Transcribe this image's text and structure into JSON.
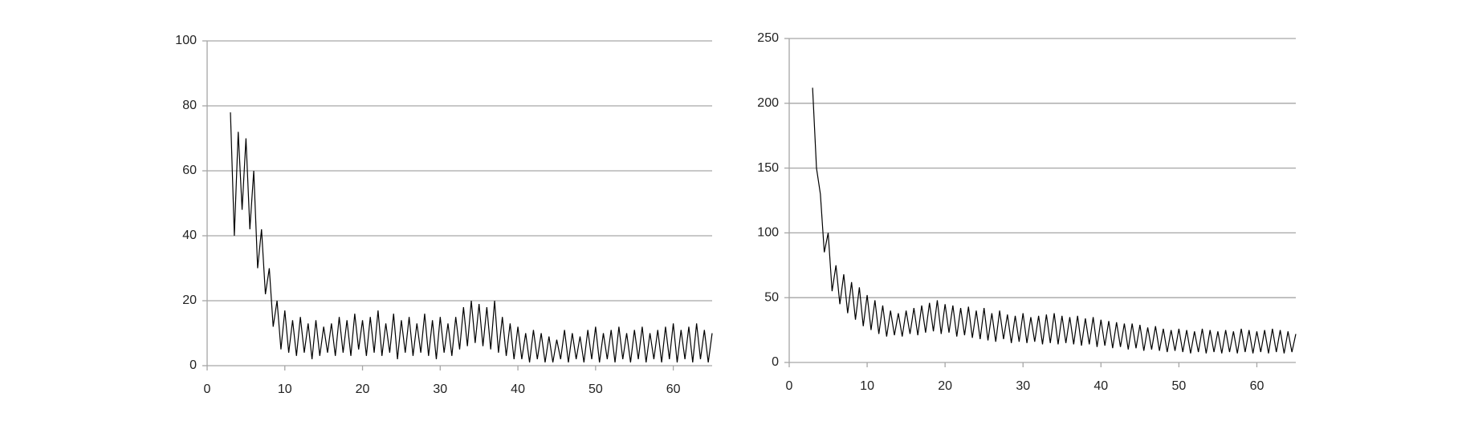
{
  "chart_data": [
    {
      "type": "line",
      "color": "#000000",
      "grid": true,
      "xlim": [
        0,
        65
      ],
      "xticks": [
        0,
        10,
        20,
        30,
        40,
        50,
        60
      ],
      "ylim": [
        0,
        100
      ],
      "yticks": [
        0,
        20,
        40,
        60,
        80,
        100
      ],
      "x": [
        3,
        3.5,
        4,
        4.5,
        5,
        5.5,
        6,
        6.5,
        7,
        7.5,
        8,
        8.5,
        9,
        9.5,
        10,
        10.5,
        11,
        11.5,
        12,
        12.5,
        13,
        13.5,
        14,
        14.5,
        15,
        15.5,
        16,
        16.5,
        17,
        17.5,
        18,
        18.5,
        19,
        19.5,
        20,
        20.5,
        21,
        21.5,
        22,
        22.5,
        23,
        23.5,
        24,
        24.5,
        25,
        25.5,
        26,
        26.5,
        27,
        27.5,
        28,
        28.5,
        29,
        29.5,
        30,
        30.5,
        31,
        31.5,
        32,
        32.5,
        33,
        33.5,
        34,
        34.5,
        35,
        35.5,
        36,
        36.5,
        37,
        37.5,
        38,
        38.5,
        39,
        39.5,
        40,
        40.5,
        41,
        41.5,
        42,
        42.5,
        43,
        43.5,
        44,
        44.5,
        45,
        45.5,
        46,
        46.5,
        47,
        47.5,
        48,
        48.5,
        49,
        49.5,
        50,
        50.5,
        51,
        51.5,
        52,
        52.5,
        53,
        53.5,
        54,
        54.5,
        55,
        55.5,
        56,
        56.5,
        57,
        57.5,
        58,
        58.5,
        59,
        59.5,
        60,
        60.5,
        61,
        61.5,
        62,
        62.5,
        63,
        63.5,
        64,
        64.5,
        65
      ],
      "values": [
        78,
        40,
        72,
        48,
        70,
        42,
        60,
        30,
        42,
        22,
        30,
        12,
        20,
        5,
        17,
        4,
        14,
        3,
        15,
        4,
        13,
        2,
        14,
        3,
        12,
        4,
        13,
        3,
        15,
        4,
        14,
        3,
        16,
        5,
        14,
        3,
        15,
        4,
        17,
        3,
        13,
        4,
        16,
        2,
        14,
        4,
        15,
        3,
        13,
        4,
        16,
        3,
        14,
        2,
        15,
        4,
        13,
        3,
        15,
        5,
        18,
        6,
        20,
        7,
        19,
        6,
        18,
        5,
        20,
        4,
        15,
        3,
        13,
        2,
        12,
        2,
        10,
        1,
        11,
        2,
        10,
        1,
        9,
        1,
        8,
        2,
        11,
        1,
        10,
        2,
        9,
        1,
        11,
        2,
        12,
        1,
        10,
        2,
        11,
        1,
        12,
        2,
        10,
        1,
        11,
        2,
        12,
        1,
        10,
        2,
        11,
        1,
        12,
        2,
        13,
        1,
        11,
        2,
        12,
        1,
        13,
        2,
        11,
        1,
        10
      ]
    },
    {
      "type": "line",
      "color": "#000000",
      "grid": true,
      "xlim": [
        0,
        65
      ],
      "xticks": [
        0,
        10,
        20,
        30,
        40,
        50,
        60
      ],
      "ylim": [
        0,
        250
      ],
      "yticks": [
        0,
        50,
        100,
        150,
        200,
        250
      ],
      "x": [
        3,
        3.5,
        4,
        4.5,
        5,
        5.5,
        6,
        6.5,
        7,
        7.5,
        8,
        8.5,
        9,
        9.5,
        10,
        10.5,
        11,
        11.5,
        12,
        12.5,
        13,
        13.5,
        14,
        14.5,
        15,
        15.5,
        16,
        16.5,
        17,
        17.5,
        18,
        18.5,
        19,
        19.5,
        20,
        20.5,
        21,
        21.5,
        22,
        22.5,
        23,
        23.5,
        24,
        24.5,
        25,
        25.5,
        26,
        26.5,
        27,
        27.5,
        28,
        28.5,
        29,
        29.5,
        30,
        30.5,
        31,
        31.5,
        32,
        32.5,
        33,
        33.5,
        34,
        34.5,
        35,
        35.5,
        36,
        36.5,
        37,
        37.5,
        38,
        38.5,
        39,
        39.5,
        40,
        40.5,
        41,
        41.5,
        42,
        42.5,
        43,
        43.5,
        44,
        44.5,
        45,
        45.5,
        46,
        46.5,
        47,
        47.5,
        48,
        48.5,
        49,
        49.5,
        50,
        50.5,
        51,
        51.5,
        52,
        52.5,
        53,
        53.5,
        54,
        54.5,
        55,
        55.5,
        56,
        56.5,
        57,
        57.5,
        58,
        58.5,
        59,
        59.5,
        60,
        60.5,
        61,
        61.5,
        62,
        62.5,
        63,
        63.5,
        64,
        64.5,
        65
      ],
      "values": [
        212,
        150,
        130,
        85,
        100,
        55,
        75,
        45,
        68,
        38,
        62,
        33,
        58,
        28,
        52,
        25,
        48,
        22,
        44,
        20,
        40,
        21,
        38,
        20,
        40,
        22,
        42,
        21,
        44,
        23,
        46,
        24,
        48,
        22,
        45,
        23,
        44,
        20,
        42,
        21,
        43,
        19,
        40,
        18,
        42,
        17,
        38,
        16,
        40,
        18,
        37,
        15,
        36,
        16,
        38,
        15,
        35,
        16,
        36,
        14,
        37,
        15,
        38,
        14,
        36,
        15,
        35,
        14,
        36,
        13,
        34,
        14,
        35,
        12,
        33,
        13,
        32,
        11,
        31,
        12,
        30,
        10,
        30,
        11,
        29,
        9,
        27,
        10,
        28,
        9,
        26,
        8,
        25,
        9,
        26,
        8,
        25,
        7,
        24,
        8,
        26,
        7,
        25,
        8,
        24,
        7,
        25,
        8,
        24,
        7,
        26,
        8,
        25,
        7,
        24,
        8,
        25,
        7,
        26,
        8,
        25,
        7,
        24,
        8,
        22
      ]
    }
  ]
}
